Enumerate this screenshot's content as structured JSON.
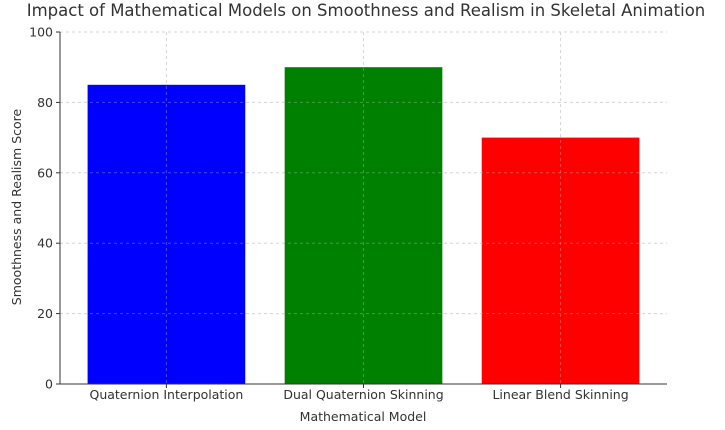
{
  "chart_data": {
    "type": "bar",
    "title": "Impact of Mathematical Models on Smoothness and Realism in Skeletal Animation",
    "xlabel": "Mathematical Model",
    "ylabel": "Smoothness and Realism Score",
    "categories": [
      "Quaternion Interpolation",
      "Dual Quaternion Skinning",
      "Linear Blend Skinning"
    ],
    "values": [
      85,
      90,
      70
    ],
    "colors": [
      "#0000ff",
      "#008000",
      "#ff0000"
    ],
    "ylim": [
      0,
      100
    ],
    "yticks": [
      0,
      20,
      40,
      60,
      80,
      100
    ],
    "grid": true,
    "legend": "none"
  }
}
